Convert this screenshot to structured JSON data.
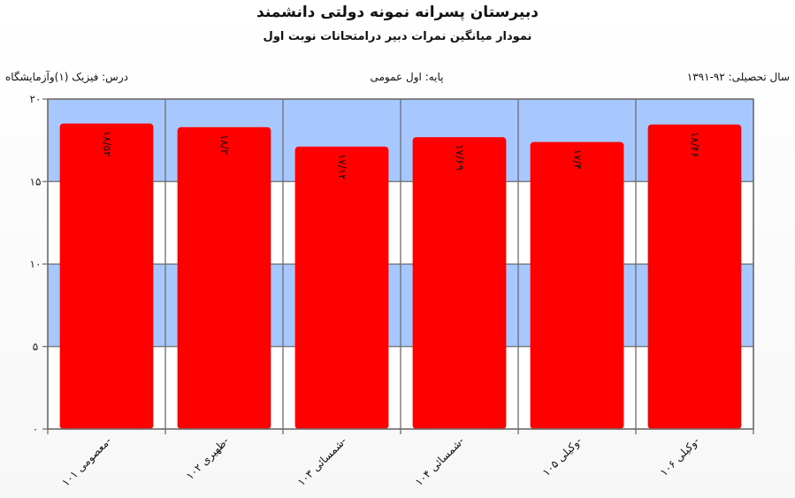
{
  "header": {
    "title": "دبیرستان پسرانه نمونه دولتی دانشمند",
    "subtitle": "نمودار میانگین نمرات دبیر درامتحانات نوبت اول"
  },
  "info": {
    "year": "سال تحصیلی: ۹۲-۱۳۹۱",
    "grade": "پایه: اول عمومی",
    "course": "درس: فیزیک (۱)وآزمایشگاه"
  },
  "chart_data": {
    "type": "bar",
    "categories": [
      "معصومی ۱۰۱-",
      "ظهیری ۱۰۲-",
      "شمسائی ۱۰۳-",
      "شمسائی ۱۰۴-",
      "وکیلی ۱۰۵-",
      "وکیلی ۱۰۶-"
    ],
    "values": [
      18.52,
      18.3,
      17.12,
      17.69,
      17.4,
      18.46
    ],
    "value_labels": [
      "۱۸/۵۲",
      "۱۸/۳",
      "۱۷/۱۲",
      "۱۷/۶۹",
      "۱۷/۴",
      "۱۸/۴۶"
    ],
    "y_ticks": [
      0,
      5,
      10,
      15,
      20
    ],
    "y_tick_labels": [
      "۰",
      "۵",
      "۱۰",
      "۱۵",
      "۲۰"
    ],
    "ylim": [
      0,
      20
    ],
    "grid": true,
    "colors": {
      "bar": "#ff0000",
      "band_dark": "#a7c8ff",
      "band_light": "#ffffff",
      "grid": "#6d6d6d"
    }
  }
}
